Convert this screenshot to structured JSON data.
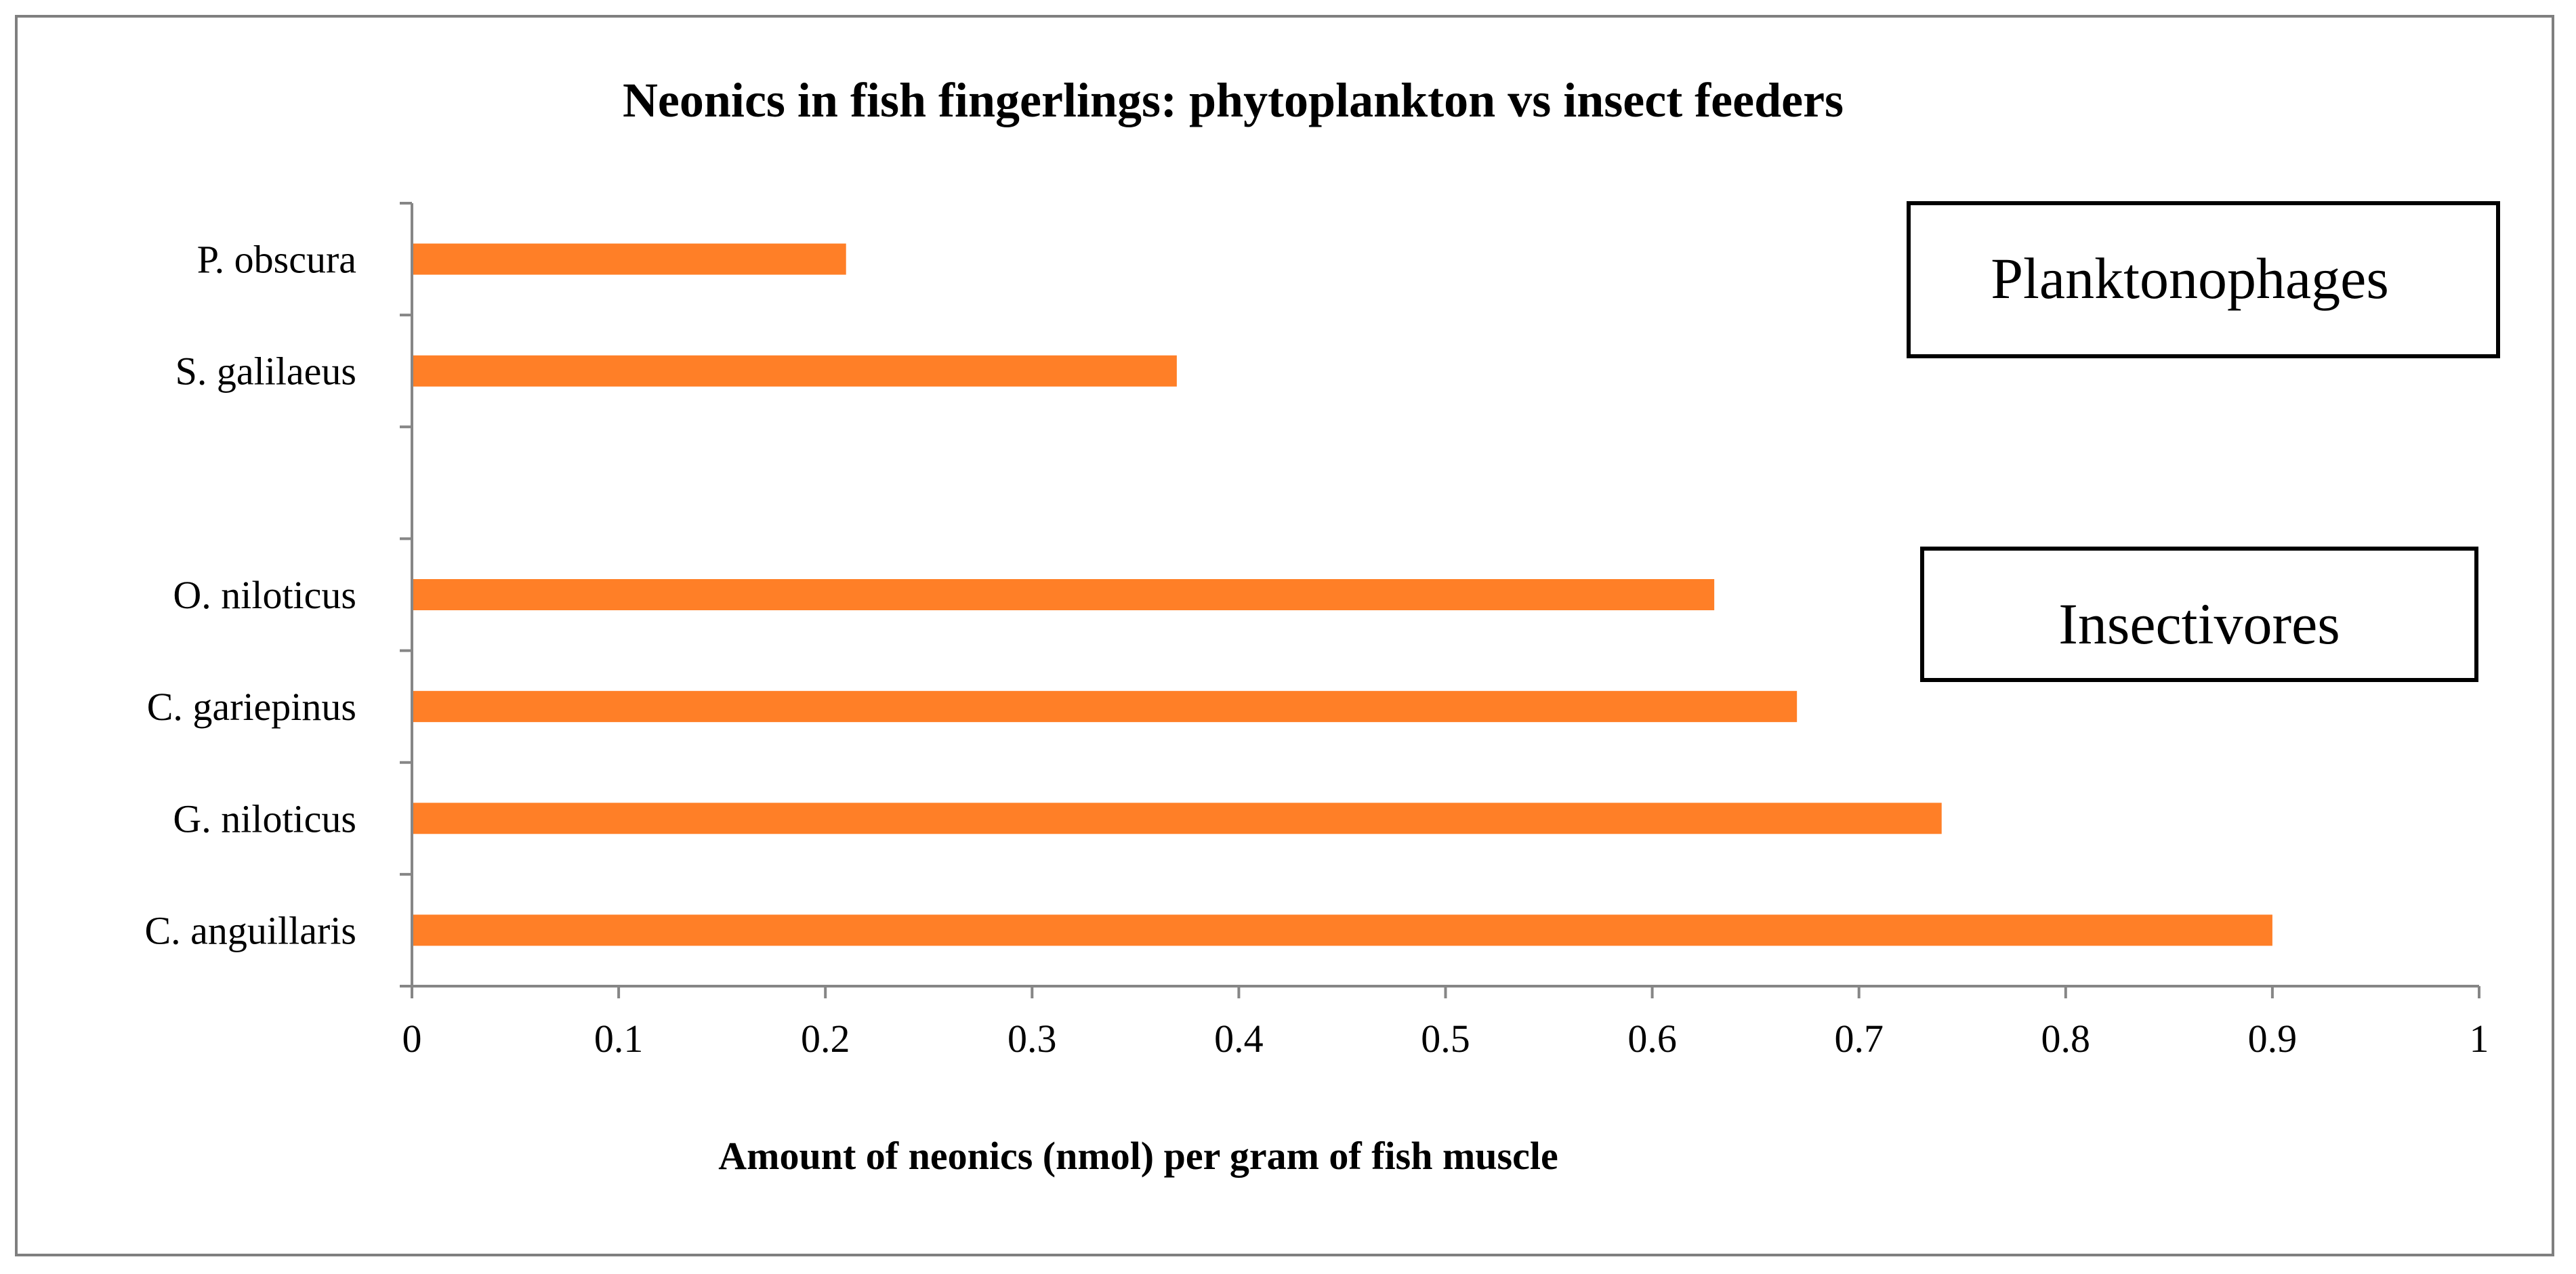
{
  "chart_data": {
    "type": "bar",
    "orientation": "horizontal",
    "title": "Neonics in fish fingerlings: phytoplankton vs insect feeders",
    "xlabel": "Amount of neonics (nmol) per gram of fish muscle",
    "ylabel": "",
    "xlim": [
      0,
      1
    ],
    "xticks": [
      "0",
      "0.1",
      "0.2",
      "0.3",
      "0.4",
      "0.5",
      "0.6",
      "0.7",
      "0.8",
      "0.9",
      "1"
    ],
    "grid": false,
    "bar_color": "#FF7F27",
    "categories": [
      "P. obscura",
      "S. galilaeus",
      "",
      "O. niloticus",
      "C. gariepinus",
      "G. niloticus",
      "C. anguillaris"
    ],
    "values": [
      0.21,
      0.37,
      null,
      0.63,
      0.67,
      0.74,
      0.9
    ],
    "annotations": [
      {
        "text": "Planktonophages",
        "group": "planktonophages"
      },
      {
        "text": "Insectivores",
        "group": "insectivores"
      }
    ]
  }
}
